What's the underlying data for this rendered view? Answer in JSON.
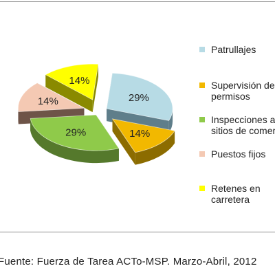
{
  "chart_data": {
    "type": "pie",
    "title": "",
    "slices": [
      {
        "label": "Patrullajes",
        "value": 29,
        "display": "29%",
        "color": "#b7dbe5",
        "side": "#5f7e8a"
      },
      {
        "label": "Supervisión de\npermisos",
        "value": 14,
        "display": "14%",
        "color": "#f2b800",
        "side": "#8c6c00"
      },
      {
        "label": "Inspecciones a\nsitios de comercio",
        "value": 29,
        "display": "29%",
        "color": "#8fca4a",
        "side": "#55792c"
      },
      {
        "label": "Puestos fijos",
        "value": 14,
        "display": "14%",
        "color": "#f4c9b3",
        "side": "#6e5448"
      },
      {
        "label": "Retenes en\ncarretera",
        "value": 14,
        "display": "14%",
        "color": "#ffff00",
        "side": "#8a8a00"
      }
    ],
    "legend_position": "right"
  },
  "legend": {
    "items": [
      {
        "label": "Patrullajes",
        "color": "#b7dbe5"
      },
      {
        "label": "Supervisión de\npermisos",
        "color": "#f2b800"
      },
      {
        "label": "Inspecciones a\nsitios de comercio",
        "color": "#8fca4a"
      },
      {
        "label": "Puestos fijos",
        "color": "#f4c9b3"
      },
      {
        "label": "Retenes en\ncarretera",
        "color": "#ffff00"
      }
    ]
  },
  "source": {
    "text": "Fuente: Fuerza de Tarea ACTo-MSP. Marzo-Abril, 2012"
  }
}
